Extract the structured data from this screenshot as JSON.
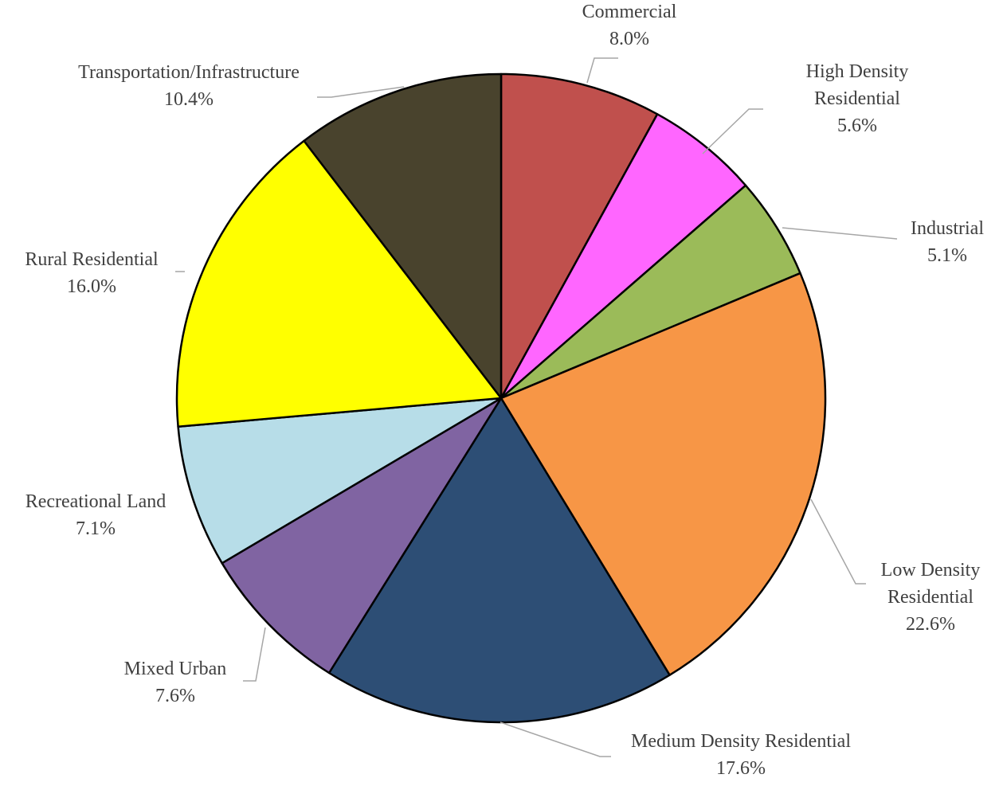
{
  "chart_data": {
    "type": "pie",
    "title": "",
    "start_angle_deg": 0,
    "direction": "clockwise",
    "slices": [
      {
        "name": "Commercial",
        "value": 8.0,
        "label_lines": [
          "Commercial",
          "8.0%"
        ],
        "color": "#C0504D"
      },
      {
        "name": "High Density Residential",
        "value": 5.6,
        "label_lines": [
          "High Density",
          "Residential",
          "5.6%"
        ],
        "color": "#FF66FF"
      },
      {
        "name": "Industrial",
        "value": 5.1,
        "label_lines": [
          "Industrial",
          "5.1%"
        ],
        "color": "#9BBB59"
      },
      {
        "name": "Low Density Residential",
        "value": 22.6,
        "label_lines": [
          "Low Density",
          "Residential",
          "22.6%"
        ],
        "color": "#F79646"
      },
      {
        "name": "Medium Density Residential",
        "value": 17.6,
        "label_lines": [
          "Medium Density Residential",
          "17.6%"
        ],
        "color": "#2D4E75"
      },
      {
        "name": "Mixed Urban",
        "value": 7.6,
        "label_lines": [
          "Mixed Urban",
          "7.6%"
        ],
        "color": "#8064A2"
      },
      {
        "name": "Recreational Land",
        "value": 7.1,
        "label_lines": [
          "Recreational Land",
          "7.1%"
        ],
        "color": "#B7DDE8"
      },
      {
        "name": "Rural Residential",
        "value": 16.0,
        "label_lines": [
          "Rural Residential",
          "16.0%"
        ],
        "color": "#FFFF00"
      },
      {
        "name": "Transportation/Infrastructure",
        "value": 10.4,
        "label_lines": [
          "Transportation/Infrastructure",
          "10.4%"
        ],
        "color": "#49432D"
      }
    ],
    "legend": "none",
    "leader_line_color": "#A6A6A6",
    "label_color": "#404040"
  }
}
